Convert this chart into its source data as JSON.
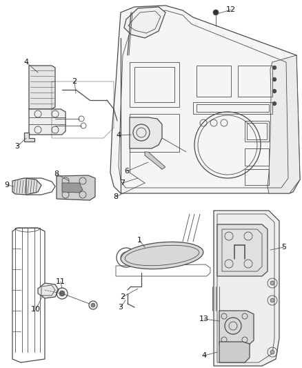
{
  "background_color": "#ffffff",
  "line_color": "#4a4a4a",
  "label_color": "#111111",
  "fig_width": 4.38,
  "fig_height": 5.33,
  "dpi": 100
}
